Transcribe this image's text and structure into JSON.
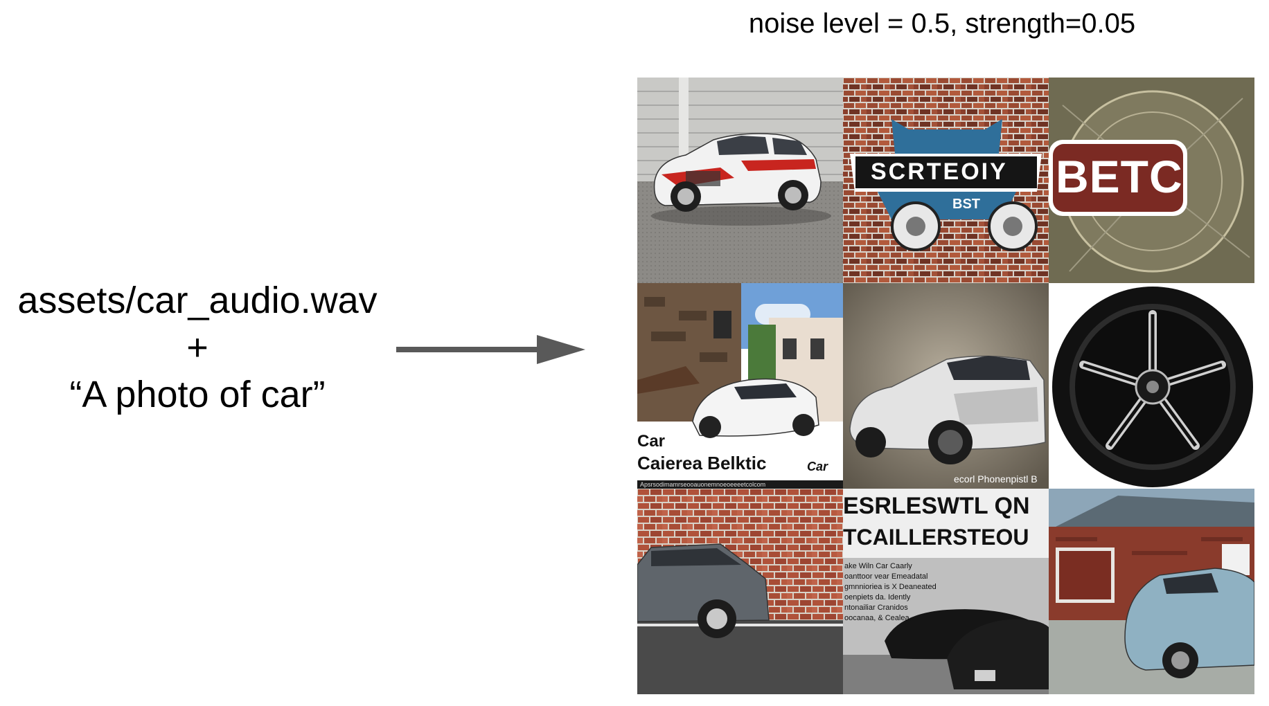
{
  "header": {
    "caption": "noise level = 0.5, strength=0.05"
  },
  "input": {
    "audio_path": "assets/car_audio.wav",
    "plus": "+",
    "prompt": "“A photo of car”"
  },
  "colors": {
    "text": "#000000",
    "arrow": "#595959",
    "background": "#ffffff"
  },
  "outputs": {
    "tile_1": {},
    "tile_2": {
      "sign_text": "SCRTEOIY",
      "sub_text": "BST"
    },
    "tile_3": {
      "badge_text": "BETC"
    },
    "tile_4": {
      "line1": "Car",
      "line2": "Caierea Belktic",
      "brand": "Car",
      "footer": "Apsrsodimamrseooauonemnoeoeeeetcolcom"
    },
    "tile_5": {
      "caption": "ecorl Phonenpistl B"
    },
    "tile_6": {},
    "tile_7": {},
    "tile_8": {
      "line1": "ESRLESWTL QN",
      "line2": "TCAILLERSTEOU",
      "body": [
        "ake Wiln Car Caarly",
        "oanttoor vear Emeadatal",
        "gmnnioriea is X Deaneated",
        "oenpiets da. Idently",
        "ntonailiar Cranidos",
        "oocanaa, & Cealea."
      ]
    },
    "tile_9": {}
  }
}
